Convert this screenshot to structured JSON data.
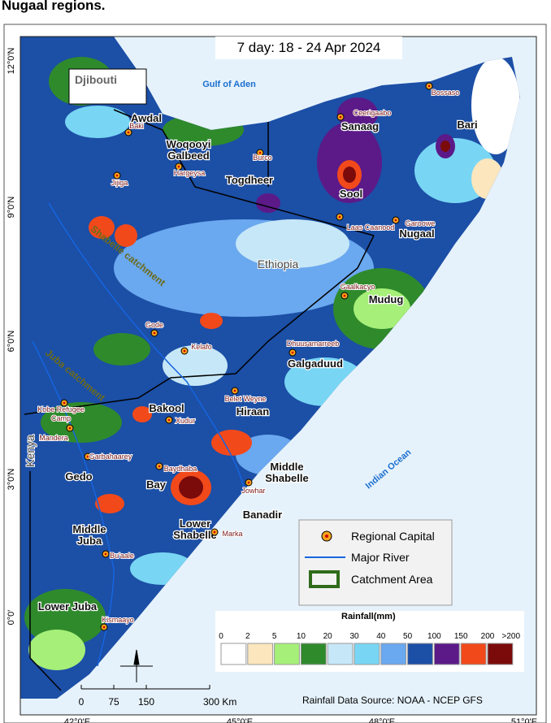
{
  "heading": "Nugaal regions.",
  "map": {
    "title": "7 day:  18 - 24 Apr 2024",
    "water_labels": [
      "Gulf of Aden",
      "Indian Ocean"
    ],
    "country_labels": [
      "Djibouti",
      "Ethiopia",
      "Kenya"
    ],
    "catchment_labels": [
      "Shabelle catchment",
      "Juba catchment"
    ],
    "regions": [
      [
        "Awdal"
      ],
      [
        "Woqooyi",
        "Galbeed"
      ],
      [
        "Togdheer"
      ],
      [
        "Sanaag"
      ],
      [
        "Sool"
      ],
      [
        "Bari"
      ],
      [
        "Nugaal"
      ],
      [
        "Mudug"
      ],
      [
        "Galgaduud"
      ],
      [
        "Hiraan"
      ],
      [
        "Bakool"
      ],
      [
        "Gedo"
      ],
      [
        "Bay"
      ],
      [
        "Middle",
        "Shabelle"
      ],
      [
        "Banadir"
      ],
      [
        "Lower",
        "Shabelle"
      ],
      [
        "Middle",
        "Juba"
      ],
      [
        "Lower Juba"
      ]
    ],
    "towns": [
      [
        "Baki"
      ],
      [
        "Hargeysa"
      ],
      [
        "Burco"
      ],
      [
        "Ceerigaabo"
      ],
      [
        "Bossaso"
      ],
      [
        "Laas Caanood"
      ],
      [
        "Garoowe"
      ],
      [
        "Jijiga"
      ],
      [
        "Gaalkacyo"
      ],
      [
        "Gode"
      ],
      [
        "Kelafo"
      ],
      [
        "Dhuusamarreeb"
      ],
      [
        "Belet Weyne"
      ],
      [
        "Kobe Refugee",
        "Camp"
      ],
      [
        "Mandera"
      ],
      [
        "Xudur"
      ],
      [
        "Garbahaarey"
      ],
      [
        "Baydhaba"
      ],
      [
        "Jowhar"
      ],
      [
        "Marka"
      ],
      [
        "Bu'aale"
      ],
      [
        "Kismaayo"
      ]
    ],
    "lat_labels": [
      "12°0'N",
      "9°0'N",
      "6°0'N",
      "3°0'N",
      "0°0'"
    ],
    "lon_labels": [
      "42°0'E",
      "45°0'E",
      "48°0'E",
      "51°0'E"
    ]
  },
  "legend": {
    "items": [
      "Regional Capital",
      "Major River",
      "Catchment Area"
    ]
  },
  "rainfall_scale": {
    "title": "Rainfall(mm)",
    "breaks": [
      "0",
      "2",
      "5",
      "10",
      "20",
      "30",
      "40",
      "50",
      "100",
      "150",
      "200",
      ">200"
    ],
    "colors": [
      "#ffffff",
      "#fbe6bd",
      "#a6ef78",
      "#2f8a2c",
      "#c6e7f7",
      "#78d6f4",
      "#6aa8ef",
      "#1c4fa6",
      "#5b1a88",
      "#f2491b",
      "#7b0b0b"
    ]
  },
  "scale_bar": {
    "ticks": [
      "0",
      "75",
      "150",
      "300 Km"
    ]
  },
  "source": "Rainfall Data Source: NOAA - NCEP GFS"
}
